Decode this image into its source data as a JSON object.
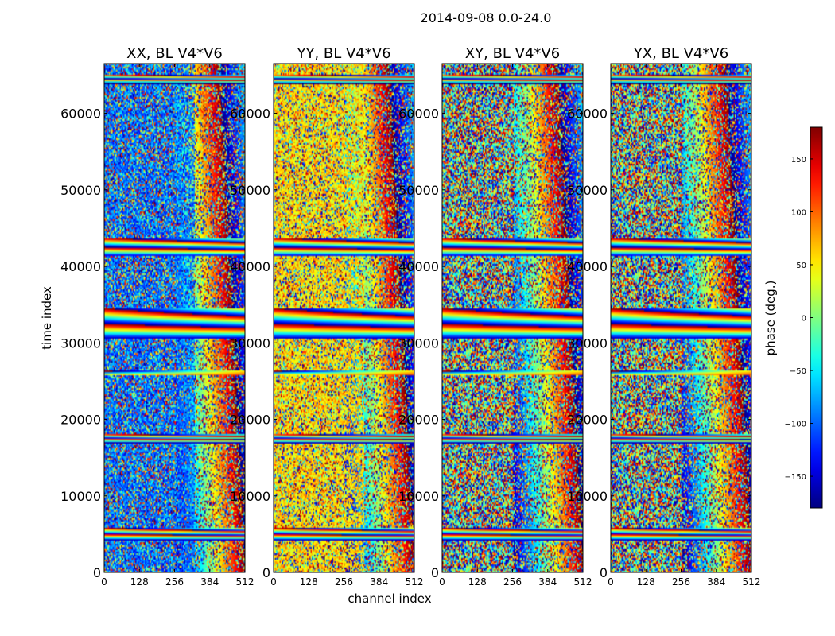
{
  "chart_data": {
    "type": "heatmap",
    "suptitle": "2014-09-08 0.0-24.0",
    "xlabel": "channel index",
    "ylabel": "time index",
    "xlim": [
      0,
      512
    ],
    "ylim": [
      0,
      66500
    ],
    "xticks": [
      0,
      128,
      256,
      384,
      512
    ],
    "xtick_labels": [
      "0",
      "128",
      "256",
      "384",
      "512"
    ],
    "yticks": [
      0,
      10000,
      20000,
      30000,
      40000,
      50000,
      60000
    ],
    "ytick_labels": [
      "0",
      "10000",
      "20000",
      "30000",
      "40000",
      "50000",
      "60000"
    ],
    "panels": [
      {
        "title": "XX, BL V4*V6",
        "bias": -95,
        "strength": 0.55
      },
      {
        "title": "YY, BL V4*V6",
        "bias": 55,
        "strength": 0.6
      },
      {
        "title": "XY, BL V4*V6",
        "bias": 0,
        "strength": 0.05
      },
      {
        "title": "YX, BL V4*V6",
        "bias": 0,
        "strength": 0.05
      }
    ],
    "colorbar": {
      "label": "phase (deg.)",
      "range": [
        -180,
        180
      ],
      "ticks": [
        -150,
        -100,
        -50,
        0,
        50,
        100,
        150
      ],
      "tick_labels": [
        "−150",
        "−100",
        "−50",
        "0",
        "50",
        "100",
        "150"
      ],
      "colormap": "jet"
    },
    "fringe_time_bands": [
      {
        "center": 5000,
        "halfwidth": 800
      },
      {
        "center": 17500,
        "halfwidth": 600
      },
      {
        "center": 26000,
        "halfwidth": 300
      },
      {
        "center": 32500,
        "halfwidth": 2000
      },
      {
        "center": 42500,
        "halfwidth": 1200
      },
      {
        "center": 64500,
        "halfwidth": 600
      }
    ]
  }
}
